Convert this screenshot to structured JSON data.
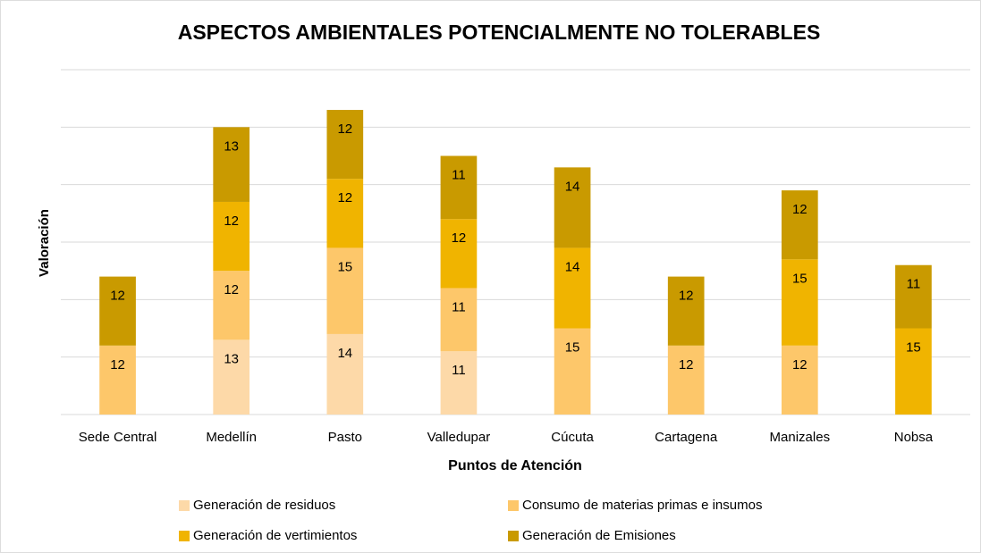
{
  "chart_data": {
    "type": "stacked_bar",
    "title": "ASPECTOS AMBIENTALES POTENCIALMENTE NO TOLERABLES",
    "x_label": "Puntos de Atención",
    "y_label": "Valoración",
    "categories": [
      "Sede Central",
      "Medellín",
      "Pasto",
      "Valledupar",
      "Cúcuta",
      "Cartagena",
      "Manizales",
      "Nobsa"
    ],
    "series": [
      {
        "name": "Generación de residuos",
        "color": "#fdd9a8",
        "values": [
          null,
          13,
          14,
          11,
          null,
          null,
          null,
          null
        ]
      },
      {
        "name": "Consumo de materias primas e insumos",
        "color": "#fdc76a",
        "values": [
          12,
          12,
          15,
          11,
          15,
          12,
          12,
          null
        ]
      },
      {
        "name": "Generación de vertimientos",
        "color": "#f0b400",
        "values": [
          null,
          12,
          12,
          12,
          14,
          null,
          15,
          15
        ]
      },
      {
        "name": "Generación de Emisiones",
        "color": "#c99a00",
        "values": [
          12,
          13,
          12,
          11,
          14,
          12,
          12,
          11
        ]
      }
    ],
    "ylim": [
      0,
      60
    ],
    "yticks": [
      0,
      10,
      20,
      30,
      40,
      50,
      60
    ],
    "grid": true
  }
}
